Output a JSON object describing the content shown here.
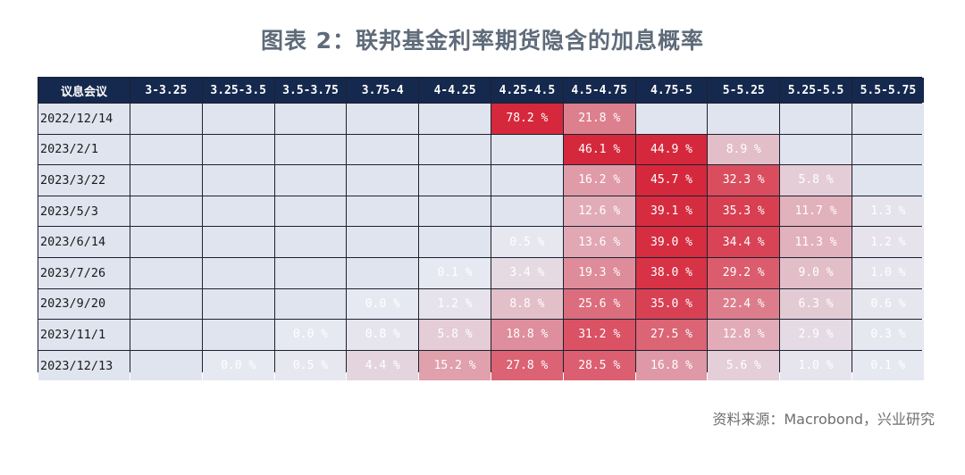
{
  "title": "图表 2：联邦基金利率期货隐含的加息概率",
  "source": "资料来源：Macrobond，兴业研究",
  "colors": {
    "header_bg": "#15284d",
    "row_label_bg": "#dfe4ef",
    "empty_cell": "#dfe4ef",
    "max_red": "#d6283c"
  },
  "chart_data": {
    "type": "heatmap",
    "corner_label": "议息会议",
    "columns": [
      "3-3.25",
      "3.25-3.5",
      "3.5-3.75",
      "3.75-4",
      "4-4.25",
      "4.25-4.5",
      "4.5-4.75",
      "4.75-5",
      "5-5.25",
      "5.25-5.5",
      "5.5-5.75"
    ],
    "rows": [
      "2022/12/14",
      "2023/2/1",
      "2023/3/22",
      "2023/5/3",
      "2023/6/14",
      "2023/7/26",
      "2023/9/20",
      "2023/11/1",
      "2023/12/13"
    ],
    "values": [
      [
        null,
        null,
        null,
        null,
        null,
        78.2,
        21.8,
        null,
        null,
        null,
        null
      ],
      [
        null,
        null,
        null,
        null,
        null,
        null,
        46.1,
        44.9,
        8.9,
        null,
        null
      ],
      [
        null,
        null,
        null,
        null,
        null,
        null,
        16.2,
        45.7,
        32.3,
        5.8,
        null
      ],
      [
        null,
        null,
        null,
        null,
        null,
        null,
        12.6,
        39.1,
        35.3,
        11.7,
        1.3
      ],
      [
        null,
        null,
        null,
        null,
        null,
        0.5,
        13.6,
        39.0,
        34.4,
        11.3,
        1.2
      ],
      [
        null,
        null,
        null,
        null,
        0.1,
        3.4,
        19.3,
        38.0,
        29.2,
        9.0,
        1.0
      ],
      [
        null,
        null,
        null,
        0.0,
        1.2,
        8.8,
        25.6,
        35.0,
        22.4,
        6.3,
        0.6
      ],
      [
        null,
        null,
        0.0,
        0.8,
        5.8,
        18.8,
        31.2,
        27.5,
        12.8,
        2.9,
        0.3
      ],
      [
        null,
        0.0,
        0.5,
        4.4,
        15.2,
        27.8,
        28.5,
        16.8,
        5.6,
        1.0,
        0.1
      ]
    ],
    "unit": "%"
  }
}
